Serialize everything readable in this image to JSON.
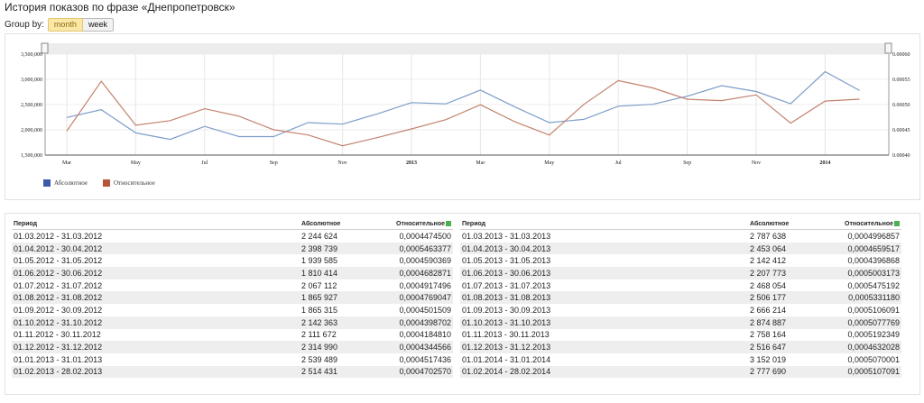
{
  "title": "История показов по фразе «Днепропетровск»",
  "group_by": {
    "label": "Group by:",
    "month": "month",
    "week": "week"
  },
  "chart_data": {
    "type": "line",
    "x": [
      "01.03.2012",
      "01.04.2012",
      "01.05.2012",
      "01.06.2012",
      "01.07.2012",
      "01.08.2012",
      "01.09.2012",
      "01.10.2012",
      "01.11.2012",
      "01.12.2012",
      "01.01.2013",
      "01.02.2013",
      "01.03.2013",
      "01.04.2013",
      "01.05.2013",
      "01.06.2013",
      "01.07.2013",
      "01.08.2013",
      "01.09.2013",
      "01.10.2013",
      "01.11.2013",
      "01.12.2013",
      "01.01.2014",
      "01.02.2014"
    ],
    "x_tick_labels": [
      "Mar",
      "May",
      "Jul",
      "Sep",
      "Nov",
      "2013",
      "Mar",
      "May",
      "Jul",
      "Sep",
      "Nov",
      "2014"
    ],
    "series": [
      {
        "name": "Абсолютное",
        "color": "#7c9dc9",
        "axis": "left",
        "values": [
          2244624,
          2398739,
          1939585,
          1810414,
          2067112,
          1865927,
          1865315,
          2142363,
          2111672,
          2314990,
          2539489,
          2514431,
          2787638,
          2453064,
          2142412,
          2207773,
          2468054,
          2506177,
          2666214,
          2874887,
          2758164,
          2516647,
          3152019,
          2777690
        ]
      },
      {
        "name": "Относительное",
        "color": "#c4826f",
        "axis": "right",
        "values": [
          0.00044745,
          0.0005463377,
          0.0004590369,
          0.0004682871,
          0.0004917496,
          0.0004769047,
          0.0004501509,
          0.0004398702,
          0.000418481,
          0.0004344566,
          0.0004517436,
          0.000470257,
          0.0004996857,
          0.0004659517,
          0.0004396868,
          0.0005003173,
          0.0005475192,
          0.000533118,
          0.0005106091,
          0.0005077769,
          0.0005192349,
          0.0004632028,
          0.0005070001,
          0.0005107091
        ]
      }
    ],
    "y_left_ticks": [
      "3,500,000",
      "3,000,000",
      "2,500,000",
      "2,000,000",
      "1,500,000"
    ],
    "y_left_range": [
      1500000,
      3500000
    ],
    "y_right_ticks": [
      "0.00060",
      "0.00055",
      "0.00050",
      "0.00045",
      "0.00040"
    ],
    "y_right_range": [
      0.0004,
      0.0006
    ],
    "legend_position": "bottom-left"
  },
  "legend": {
    "abs": "Абсолютное",
    "rel": "Относительное",
    "abs_color": "#3b5ba9",
    "rel_color": "#b5553a"
  },
  "table": {
    "headers": {
      "period": "Период",
      "abs": "Абсолютное",
      "rel": "Относительное"
    },
    "left": [
      {
        "period": "01.03.2012 - 31.03.2012",
        "abs": "2 244 624",
        "rel": "0,0004474500"
      },
      {
        "period": "01.04.2012 - 30.04.2012",
        "abs": "2 398 739",
        "rel": "0,0005463377"
      },
      {
        "period": "01.05.2012 - 31.05.2012",
        "abs": "1 939 585",
        "rel": "0,0004590369"
      },
      {
        "period": "01.06.2012 - 30.06.2012",
        "abs": "1 810 414",
        "rel": "0,0004682871"
      },
      {
        "period": "01.07.2012 - 31.07.2012",
        "abs": "2 067 112",
        "rel": "0,0004917496"
      },
      {
        "period": "01.08.2012 - 31.08.2012",
        "abs": "1 865 927",
        "rel": "0,0004769047"
      },
      {
        "period": "01.09.2012 - 30.09.2012",
        "abs": "1 865 315",
        "rel": "0,0004501509"
      },
      {
        "period": "01.10.2012 - 31.10.2012",
        "abs": "2 142 363",
        "rel": "0,0004398702"
      },
      {
        "period": "01.11.2012 - 30.11.2012",
        "abs": "2 111 672",
        "rel": "0,0004184810"
      },
      {
        "period": "01.12.2012 - 31.12.2012",
        "abs": "2 314 990",
        "rel": "0,0004344566"
      },
      {
        "period": "01.01.2013 - 31.01.2013",
        "abs": "2 539 489",
        "rel": "0,0004517436"
      },
      {
        "period": "01.02.2013 - 28.02.2013",
        "abs": "2 514 431",
        "rel": "0,0004702570"
      }
    ],
    "right": [
      {
        "period": "01.03.2013 - 31.03.2013",
        "abs": "2 787 638",
        "rel": "0,0004996857"
      },
      {
        "period": "01.04.2013 - 30.04.2013",
        "abs": "2 453 064",
        "rel": "0,0004659517"
      },
      {
        "period": "01.05.2013 - 31.05.2013",
        "abs": "2 142 412",
        "rel": "0,0004396868"
      },
      {
        "period": "01.06.2013 - 30.06.2013",
        "abs": "2 207 773",
        "rel": "0,0005003173"
      },
      {
        "period": "01.07.2013 - 31.07.2013",
        "abs": "2 468 054",
        "rel": "0,0005475192"
      },
      {
        "period": "01.08.2013 - 31.08.2013",
        "abs": "2 506 177",
        "rel": "0,0005331180"
      },
      {
        "period": "01.09.2013 - 30.09.2013",
        "abs": "2 666 214",
        "rel": "0,0005106091"
      },
      {
        "period": "01.10.2013 - 31.10.2013",
        "abs": "2 874 887",
        "rel": "0,0005077769"
      },
      {
        "period": "01.11.2013 - 30.11.2013",
        "abs": "2 758 164",
        "rel": "0,0005192349"
      },
      {
        "period": "01.12.2013 - 31.12.2013",
        "abs": "2 516 647",
        "rel": "0,0004632028"
      },
      {
        "period": "01.01.2014 - 31.01.2014",
        "abs": "3 152 019",
        "rel": "0,0005070001"
      },
      {
        "period": "01.02.2014 - 28.02.2014",
        "abs": "2 777 690",
        "rel": "0,0005107091"
      }
    ]
  }
}
